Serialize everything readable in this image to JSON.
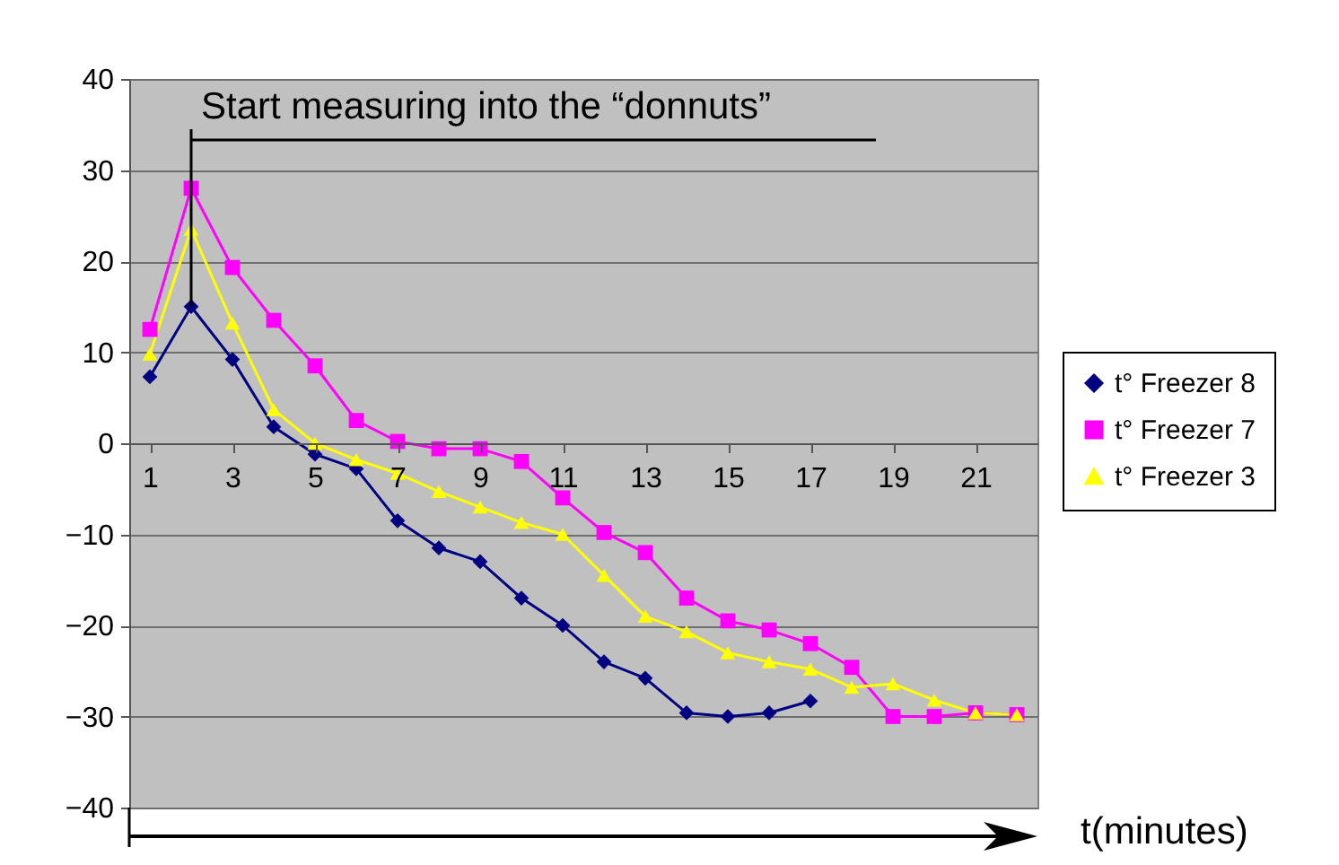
{
  "chart_data": {
    "type": "line",
    "xlabel": "t(minutes)",
    "x": [
      1,
      2,
      3,
      4,
      5,
      6,
      7,
      8,
      9,
      10,
      11,
      12,
      13,
      14,
      15,
      16,
      17,
      18,
      19,
      20,
      21,
      22
    ],
    "xlim": [
      0.5,
      22.5
    ],
    "xticks": [
      1,
      3,
      5,
      7,
      9,
      11,
      13,
      15,
      17,
      19,
      21
    ],
    "series": [
      {
        "name": "t° Freezer 8",
        "color": "#000080",
        "marker": "diamond",
        "values": [
          7.3,
          15,
          9.2,
          1.8,
          -1.2,
          -2.8,
          -8.5,
          -11.5,
          -13,
          -17,
          -20,
          -24,
          -25.8,
          -29.6,
          -30,
          -29.6,
          -28.3,
          null,
          null,
          null,
          null,
          null
        ]
      },
      {
        "name": "t° Freezer 7",
        "color": "#ff00ff",
        "marker": "square",
        "values": [
          12.5,
          28,
          19.3,
          13.5,
          8.5,
          2.5,
          0.2,
          -0.6,
          -0.6,
          -2,
          -6,
          -9.8,
          -12,
          -17,
          -19.5,
          -20.5,
          -22,
          -24.6,
          -30,
          -30,
          -29.6,
          -29.8
        ]
      },
      {
        "name": "t° Freezer 3",
        "color": "#ffff00",
        "marker": "triangle",
        "values": [
          9.8,
          23.5,
          13.2,
          3.7,
          0,
          -1.8,
          -3.3,
          -5.3,
          -7,
          -8.7,
          -10,
          -14.5,
          -19,
          -20.7,
          -23,
          -24,
          -24.8,
          -26.8,
          -26.4,
          -28.2,
          -29.6,
          -29.8
        ]
      }
    ],
    "ylim": [
      -40,
      40
    ],
    "yticks": [
      -40,
      -30,
      -20,
      -10,
      0,
      10,
      20,
      30,
      40
    ],
    "grid": "y",
    "legend": "right",
    "annotations": [
      {
        "text": "Start measuring into the “donnuts”",
        "x": 2,
        "y": 15
      }
    ]
  }
}
